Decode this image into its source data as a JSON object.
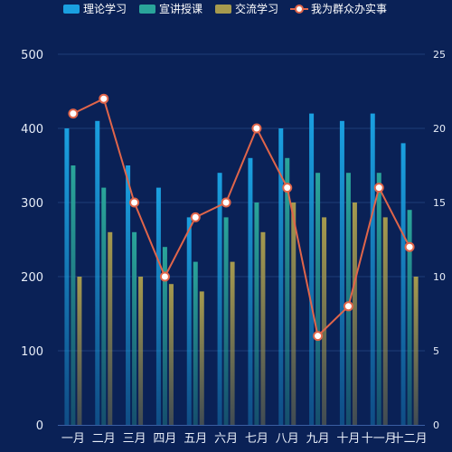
{
  "chart_data": {
    "type": "bar",
    "categories": [
      "一月",
      "二月",
      "三月",
      "四月",
      "五月",
      "六月",
      "七月",
      "八月",
      "九月",
      "十月",
      "十一月",
      "十二月"
    ],
    "series": [
      {
        "name": "理论学习",
        "type": "bar",
        "axis": "left",
        "values": [
          400,
          410,
          350,
          320,
          280,
          340,
          360,
          400,
          420,
          410,
          420,
          380
        ],
        "color": "#1aa0e0"
      },
      {
        "name": "宣讲授课",
        "type": "bar",
        "axis": "left",
        "values": [
          350,
          320,
          260,
          240,
          220,
          280,
          300,
          360,
          340,
          340,
          340,
          290
        ],
        "color": "#2aa59a"
      },
      {
        "name": "交流学习",
        "type": "bar",
        "axis": "left",
        "values": [
          200,
          260,
          200,
          190,
          180,
          220,
          260,
          300,
          280,
          300,
          280,
          200
        ],
        "color": "#a69a4e"
      },
      {
        "name": "我为群众办实事",
        "type": "line",
        "axis": "right",
        "values": [
          21,
          22,
          15,
          10,
          14,
          15,
          20,
          16,
          6,
          8,
          16,
          12
        ],
        "color": "#e0654a"
      }
    ],
    "y_left": {
      "min": 0,
      "max": 500,
      "ticks": [
        0,
        100,
        200,
        300,
        400,
        500
      ]
    },
    "y_right": {
      "min": 0,
      "max": 25,
      "ticks": [
        0,
        5,
        10,
        15,
        20,
        25
      ]
    },
    "grid": true,
    "legend_position": "top-center"
  }
}
